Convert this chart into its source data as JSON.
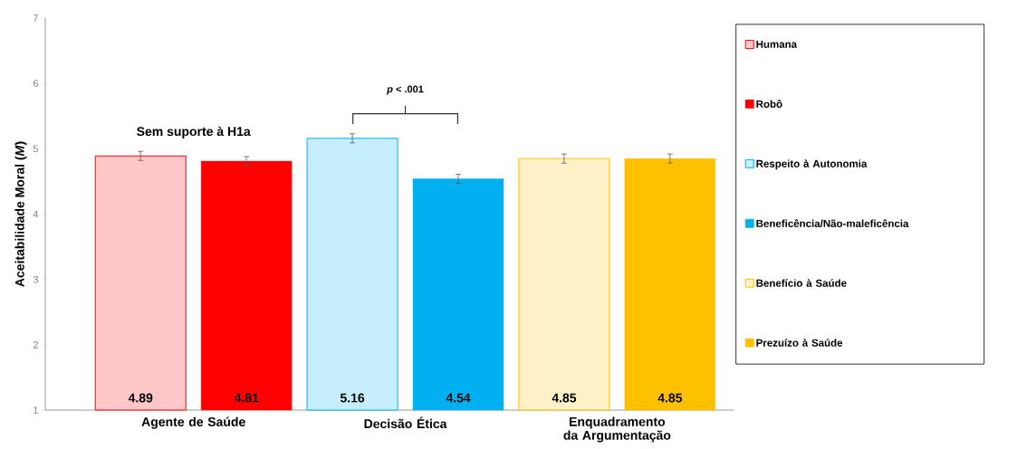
{
  "chart_data": {
    "type": "bar",
    "categories": [
      "Agente de Saúde",
      "Decisão Ética",
      "Enquadramento da Argumentação"
    ],
    "ylabel": "Aceitabilidade Moral (*M*)",
    "ylim": [
      1,
      7
    ],
    "yticks": [
      1,
      2,
      3,
      4,
      5,
      6,
      7
    ],
    "series": [
      {
        "name": "Humana",
        "color": "#ff0000",
        "values": [
          4.89,
          null,
          null
        ],
        "errors": [
          0.07,
          null,
          null
        ]
      },
      {
        "name": "Robô",
        "color": "#ff0000",
        "values": [
          4.81,
          null,
          null
        ],
        "errors": [
          0.07,
          null,
          null
        ]
      },
      {
        "name": "Respeito à Autonomia",
        "color": "#00b0f0",
        "values": [
          null,
          5.16,
          null
        ],
        "errors": [
          null,
          0.07,
          null
        ]
      },
      {
        "name": "Beneficência/Não-maleficência",
        "color": "#00b0f0",
        "values": [
          null,
          4.54,
          null
        ],
        "errors": [
          null,
          0.07,
          null
        ]
      },
      {
        "name": "Benefício à Saúde",
        "color": "#ffc000",
        "values": [
          null,
          null,
          4.85
        ],
        "errors": [
          null,
          null,
          0.07
        ]
      },
      {
        "name": "Prezuízo à Saúde",
        "color": "#ffc000",
        "values": [
          null,
          null,
          4.85
        ],
        "errors": [
          null,
          null,
          0.07
        ]
      }
    ],
    "data_labels": true,
    "legend": "right",
    "annotations": [
      "Sem suporte à H1a",
      "*p* < .001"
    ]
  }
}
